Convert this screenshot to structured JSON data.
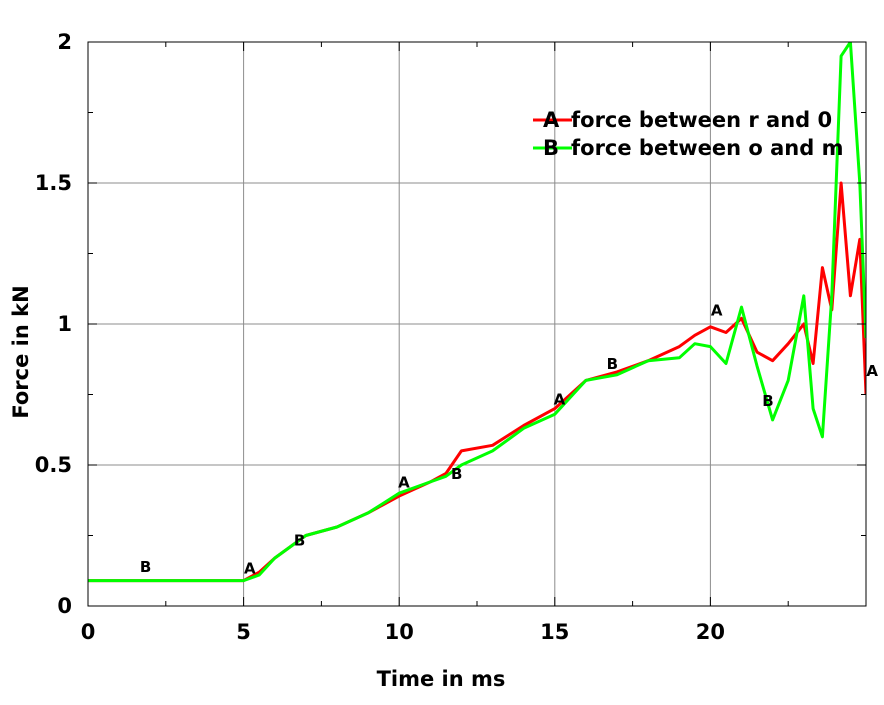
{
  "chart_data": {
    "type": "line",
    "xlabel": "Time in ms",
    "ylabel": "Force in kN",
    "xlim": [
      0,
      25
    ],
    "ylim": [
      0,
      2
    ],
    "x_ticks": [
      "0",
      "5",
      "10",
      "15",
      "20"
    ],
    "y_ticks": [
      "0",
      "0.5",
      "1",
      "1.5",
      "2"
    ],
    "grid": true,
    "legend_position": "top-right",
    "series": [
      {
        "name": "force between r and 0",
        "marker": "A",
        "color": "#ff0000",
        "x": [
          0,
          1,
          2,
          3,
          4,
          5,
          5.5,
          6,
          7,
          8,
          9,
          10,
          11,
          11.5,
          12,
          13,
          14,
          15,
          16,
          17,
          18,
          19,
          19.5,
          20,
          20.5,
          21,
          21.5,
          22,
          22.5,
          23,
          23.3,
          23.6,
          23.9,
          24.2,
          24.5,
          24.8,
          25
        ],
        "y": [
          0.09,
          0.09,
          0.09,
          0.09,
          0.09,
          0.09,
          0.12,
          0.17,
          0.25,
          0.28,
          0.33,
          0.39,
          0.44,
          0.47,
          0.55,
          0.57,
          0.64,
          0.7,
          0.8,
          0.83,
          0.87,
          0.92,
          0.96,
          0.99,
          0.97,
          1.02,
          0.9,
          0.87,
          0.93,
          1.0,
          0.86,
          1.2,
          1.05,
          1.5,
          1.1,
          1.3,
          0.75
        ]
      },
      {
        "name": "force between o and m",
        "marker": "B",
        "color": "#00ff00",
        "x": [
          0,
          1,
          2,
          3,
          4,
          5,
          5.5,
          6,
          7,
          8,
          9,
          10,
          11,
          11.5,
          12,
          13,
          14,
          15,
          16,
          17,
          18,
          19,
          19.5,
          20,
          20.5,
          21,
          21.5,
          22,
          22.5,
          23,
          23.3,
          23.6,
          23.9,
          24.2,
          24.5,
          24.8,
          25
        ],
        "y": [
          0.09,
          0.09,
          0.09,
          0.09,
          0.09,
          0.09,
          0.11,
          0.17,
          0.25,
          0.28,
          0.33,
          0.4,
          0.44,
          0.46,
          0.5,
          0.55,
          0.63,
          0.68,
          0.8,
          0.82,
          0.87,
          0.88,
          0.93,
          0.92,
          0.86,
          1.06,
          0.85,
          0.66,
          0.8,
          1.1,
          0.7,
          0.6,
          1.1,
          1.95,
          2.0,
          1.5,
          0.95
        ]
      }
    ],
    "marker_labels": [
      {
        "text": "B",
        "x": 1.85,
        "y": 0.12
      },
      {
        "text": "A",
        "x": 5.2,
        "y": 0.115
      },
      {
        "text": "B",
        "x": 6.8,
        "y": 0.215
      },
      {
        "text": "A",
        "x": 10.15,
        "y": 0.42
      },
      {
        "text": "B",
        "x": 11.85,
        "y": 0.45
      },
      {
        "text": "A",
        "x": 15.15,
        "y": 0.715
      },
      {
        "text": "B",
        "x": 16.85,
        "y": 0.84
      },
      {
        "text": "A",
        "x": 20.2,
        "y": 1.03
      },
      {
        "text": "B",
        "x": 21.85,
        "y": 0.71
      },
      {
        "text": "A",
        "x": 25.2,
        "y": 0.815
      }
    ]
  }
}
